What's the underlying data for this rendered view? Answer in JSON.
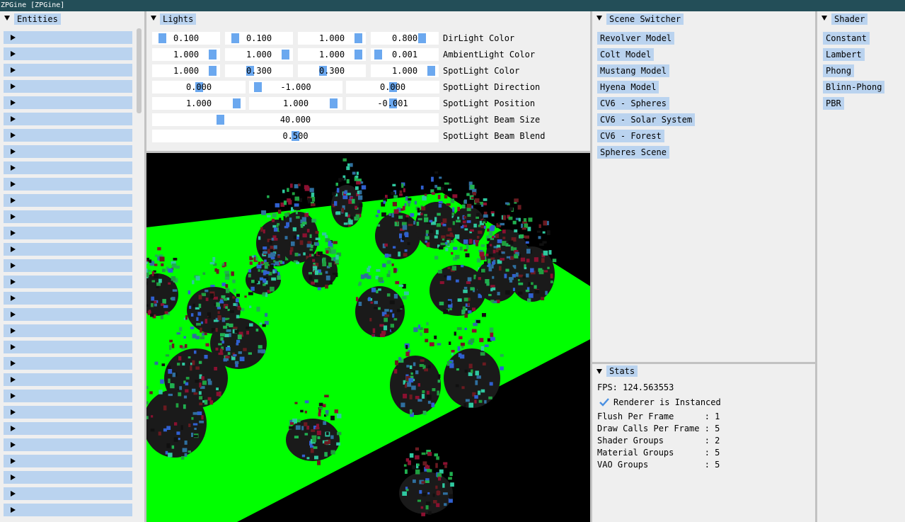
{
  "window": {
    "title": "ZPGine [ZPGine]"
  },
  "entities": {
    "title": "Entities",
    "row_count": 30
  },
  "lights": {
    "title": "Lights",
    "rows": [
      {
        "label": "DirLight Color",
        "values": [
          "0.100",
          "0.100",
          "1.000",
          "0.800"
        ]
      },
      {
        "label": "AmbientLight Color",
        "values": [
          "1.000",
          "1.000",
          "1.000",
          "0.001"
        ]
      },
      {
        "label": "SpotLight Color",
        "values": [
          "1.000",
          "0.300",
          "0.300",
          "1.000"
        ]
      },
      {
        "label": "SpotLight Direction",
        "values": [
          "0.000",
          "-1.000",
          "0.000"
        ]
      },
      {
        "label": "SpotLight Position",
        "values": [
          "1.000",
          "1.000",
          "-0.001"
        ]
      },
      {
        "label": "SpotLight Beam Size",
        "values": [
          "40.000"
        ]
      },
      {
        "label": "SpotLight Beam Blend",
        "values": [
          "0.500"
        ]
      }
    ]
  },
  "scene_switcher": {
    "title": "Scene Switcher",
    "items": [
      "Revolver Model",
      "Colt Model",
      "Mustang Model",
      "Hyena Model",
      "CV6 - Spheres",
      "CV6 - Solar System",
      "CV6 - Forest",
      "Spheres Scene"
    ]
  },
  "shader": {
    "title": "Shader",
    "items": [
      "Constant",
      "Lambert",
      "Phong",
      "Blinn-Phong",
      "PBR"
    ]
  },
  "stats": {
    "title": "Stats",
    "fps": "FPS: 124.563553",
    "instanced_label": "Renderer is Instanced",
    "instanced": true,
    "lines": [
      "Flush Per Frame      : 1",
      "Draw Calls Per Frame : 5",
      "Shader Groups        : 2",
      "Material Groups      : 5",
      "VAO Groups           : 5"
    ]
  },
  "colors": {
    "titlebar": "#234e58",
    "accent": "#bad3ef",
    "slider_grab": "#6ba8ef",
    "ground": "#00ff00"
  }
}
